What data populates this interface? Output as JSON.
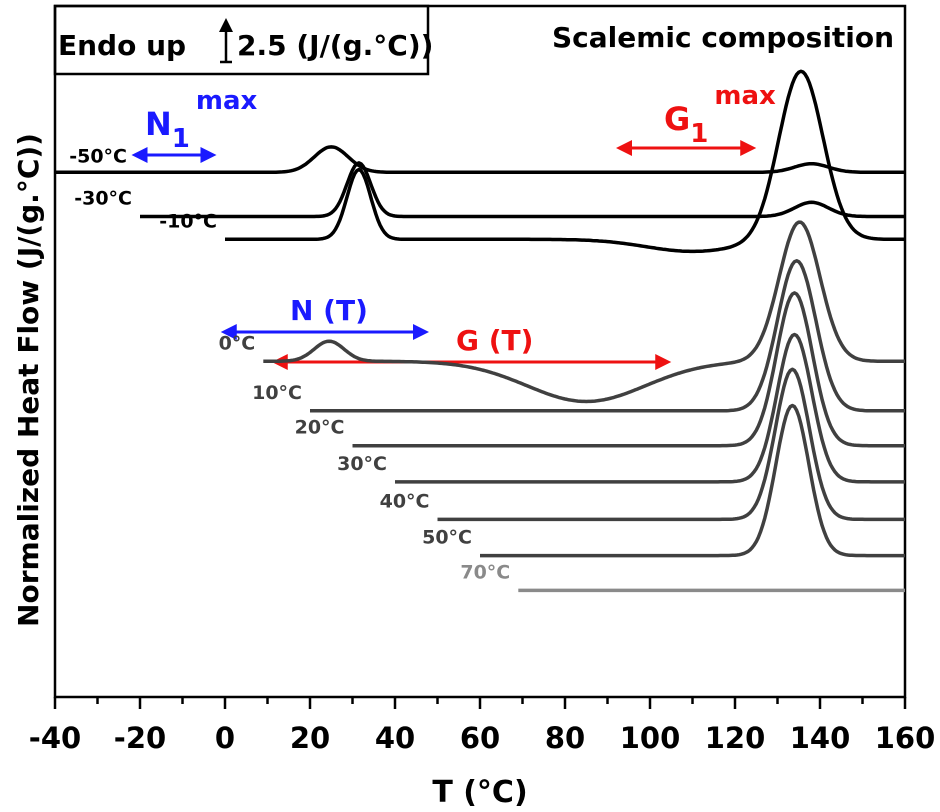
{
  "chart_data": {
    "type": "line",
    "xlabel": "T (°C)",
    "ylabel": "Normalized Heat Flow (J/(g.°C))",
    "xlim": [
      -40,
      160
    ],
    "xticks": [
      "-40",
      "-20",
      "0",
      "20",
      "40",
      "60",
      "80",
      "100",
      "120",
      "140",
      "160"
    ],
    "grid": false,
    "scale_bar": {
      "prefix": "Endo up",
      "value": "2.5 (J/(g.°C))"
    },
    "panel_label": "Scalemic composition",
    "annotations": {
      "n1": {
        "base": "N",
        "sub": "1",
        "sup": "max",
        "color": "#1a1aff",
        "from": -22,
        "to": -2
      },
      "g1": {
        "base": "G",
        "sub": "1",
        "sup": "max",
        "color": "#ee1111",
        "from": 92,
        "to": 125
      },
      "nt": {
        "label": "N (T)",
        "color": "#1a1aff",
        "from": -1,
        "to": 48
      },
      "gt": {
        "label": "G (T)",
        "color": "#ee1111",
        "from": 11,
        "to": 105
      }
    },
    "series": [
      {
        "name": "-50°C",
        "color": "#000000",
        "x_start": -40,
        "baseline": 0.1,
        "bumps": [
          [
            25,
            4,
            0.95
          ],
          [
            138,
            4,
            0.32
          ]
        ]
      },
      {
        "name": "-30°C",
        "color": "#000000",
        "x_start": -20,
        "baseline": -1.55,
        "bumps": [
          [
            31.5,
            2.8,
            2.0
          ],
          [
            138,
            4,
            0.53
          ]
        ]
      },
      {
        "name": "-10°C",
        "color": "#000000",
        "x_start": 0,
        "baseline": -2.4,
        "bumps": [
          [
            31.5,
            2.8,
            2.6
          ],
          [
            110,
            11,
            -0.45
          ],
          [
            135.5,
            5.2,
            6.3
          ]
        ]
      },
      {
        "name": "0°C",
        "color": "#404040",
        "x_start": 9,
        "baseline": -6.95,
        "bumps": [
          [
            24.5,
            3.5,
            0.75
          ],
          [
            85,
            14,
            -1.5
          ],
          [
            135.2,
            4.8,
            5.2
          ]
        ]
      },
      {
        "name": "10°C",
        "color": "#404040",
        "x_start": 20,
        "baseline": -8.8,
        "bumps": [
          [
            134.5,
            4.5,
            5.6
          ]
        ]
      },
      {
        "name": "20°C",
        "color": "#404040",
        "x_start": 30,
        "baseline": -10.1,
        "bumps": [
          [
            134,
            4.2,
            5.7
          ]
        ]
      },
      {
        "name": "30°C",
        "color": "#404040",
        "x_start": 40,
        "baseline": -11.45,
        "bumps": [
          [
            134,
            4.1,
            5.5
          ]
        ]
      },
      {
        "name": "40°C",
        "color": "#404040",
        "x_start": 50,
        "baseline": -12.85,
        "bumps": [
          [
            133.5,
            4.0,
            5.6
          ]
        ]
      },
      {
        "name": "50°C",
        "color": "#404040",
        "x_start": 60,
        "baseline": -14.2,
        "bumps": [
          [
            133.5,
            3.9,
            5.6
          ]
        ]
      },
      {
        "name": "70°C",
        "color": "#8a8a8a",
        "x_start": 69,
        "baseline": -15.5,
        "bumps": []
      }
    ]
  }
}
